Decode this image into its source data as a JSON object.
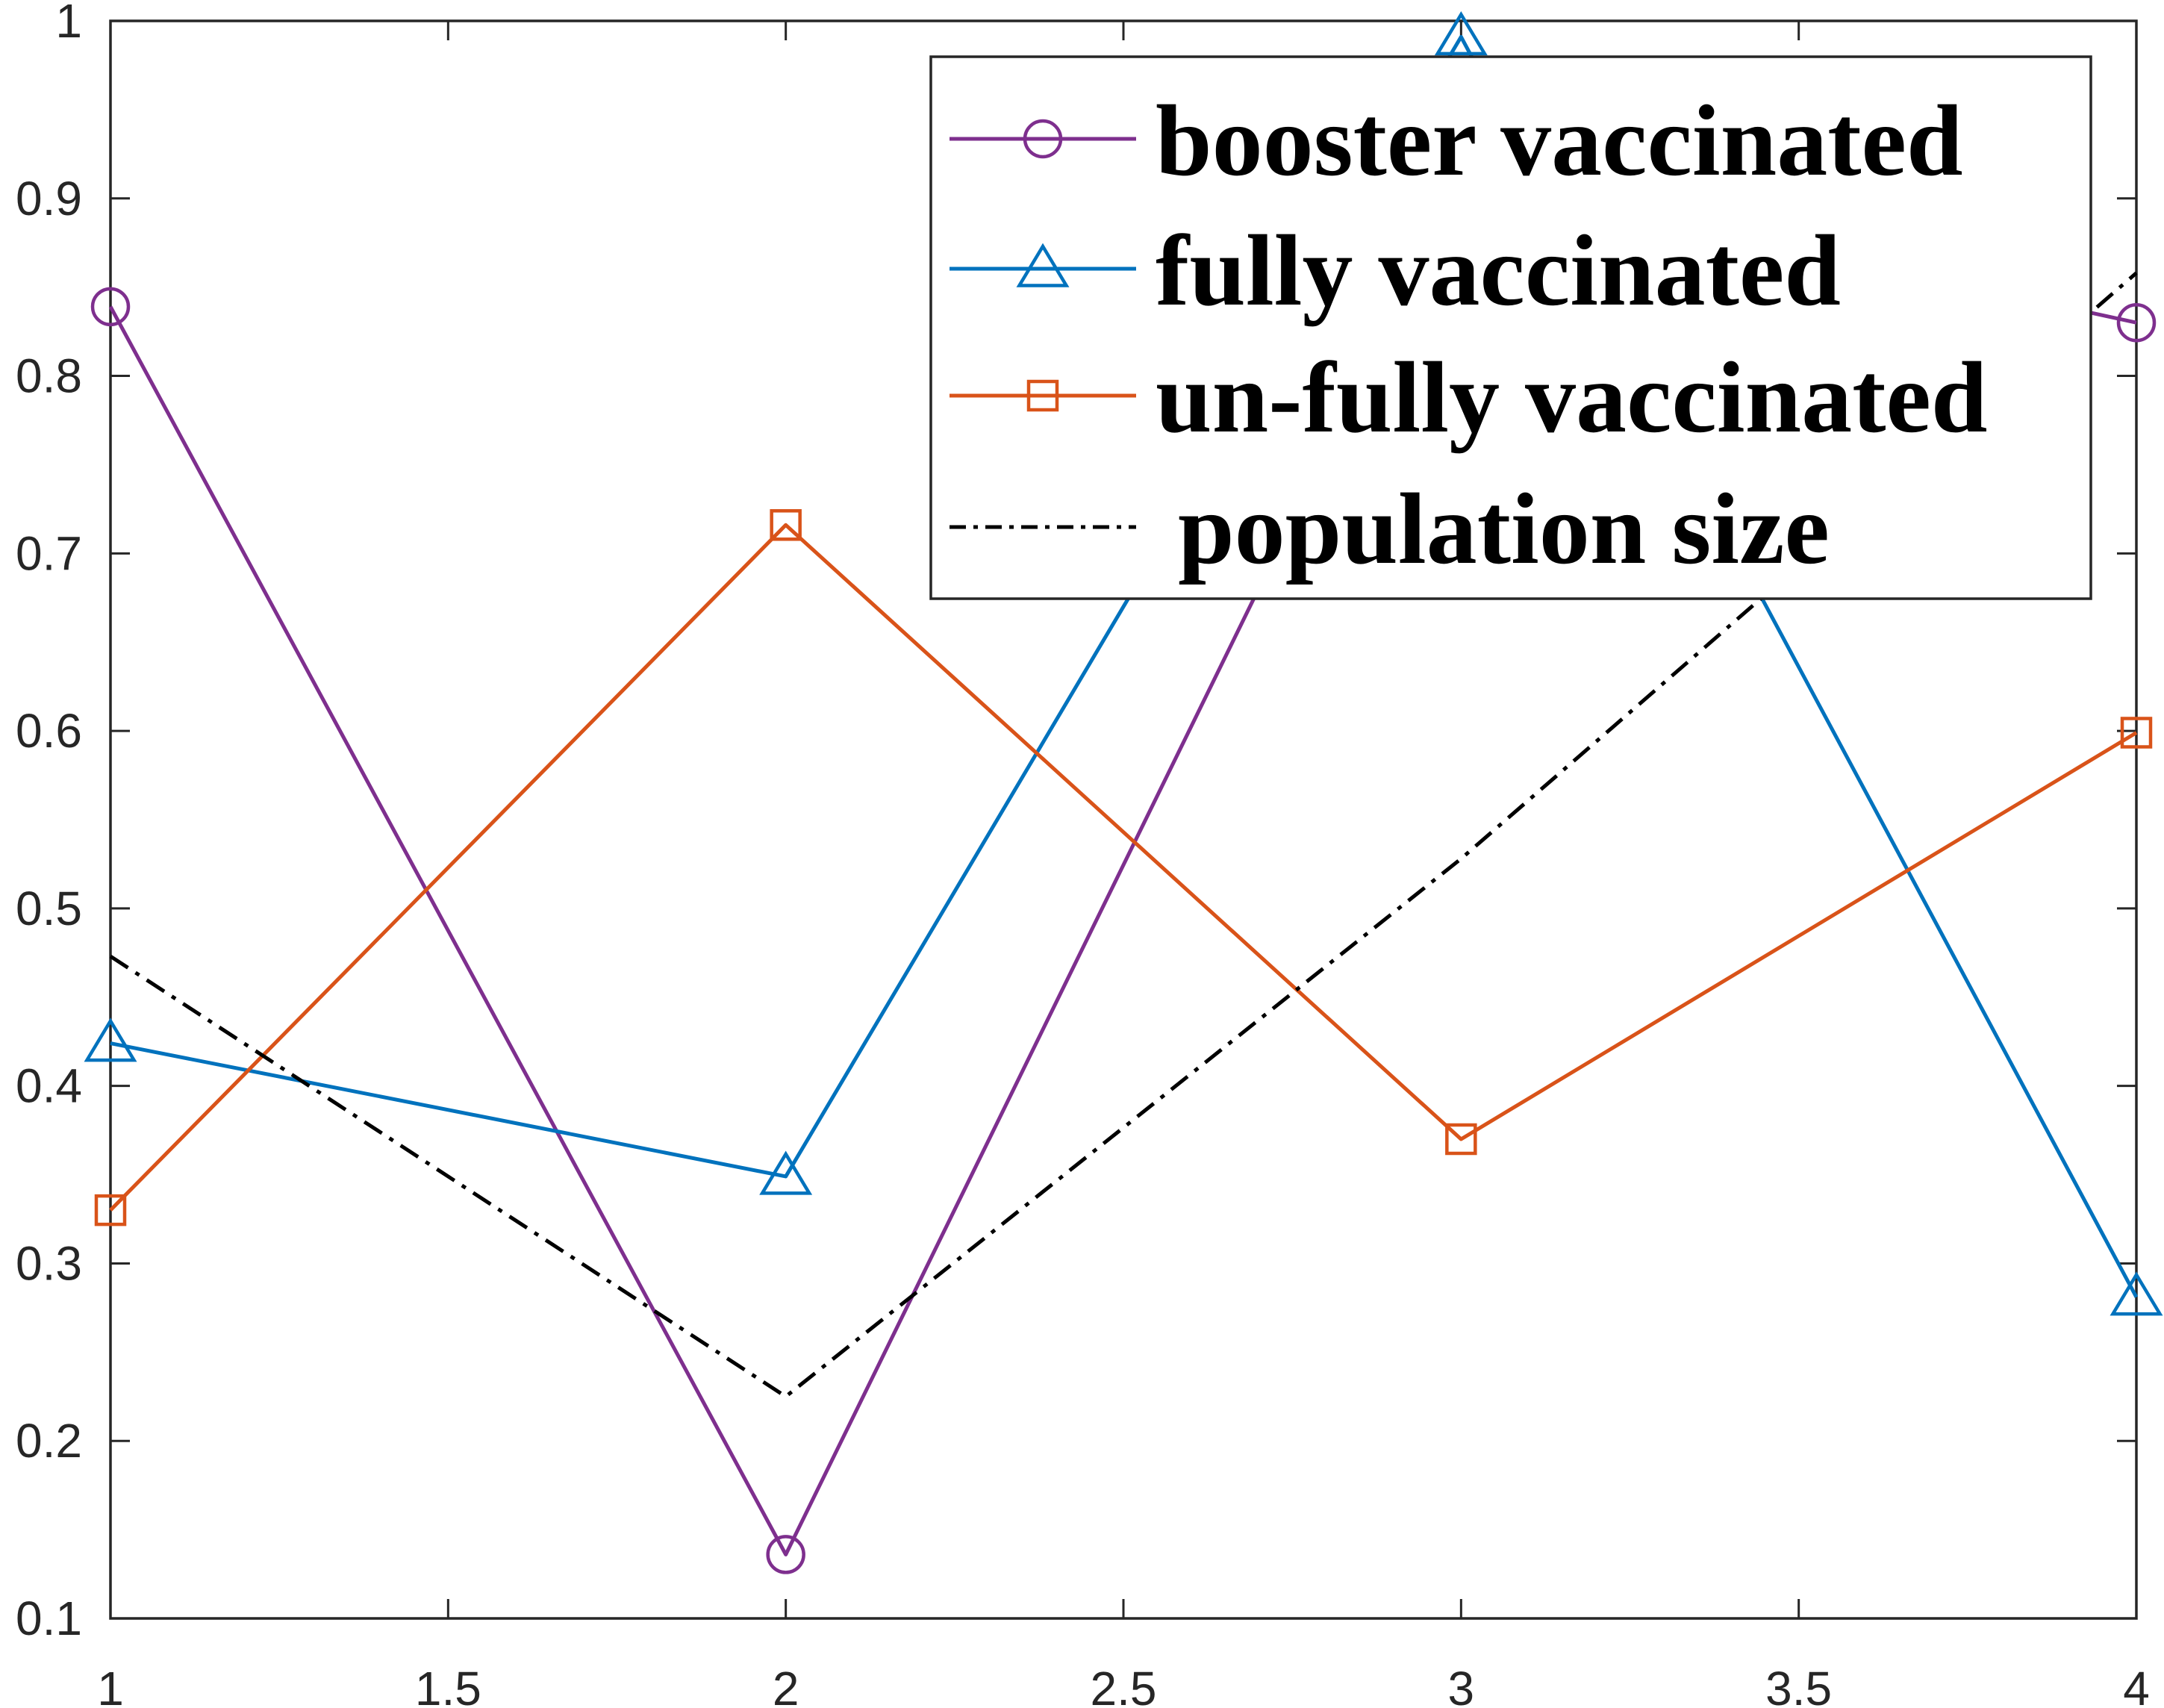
{
  "chart_data": {
    "type": "line",
    "title": "",
    "xlabel": "",
    "ylabel": "",
    "xlim": [
      1,
      4
    ],
    "ylim": [
      0.1,
      1
    ],
    "xticks": [
      1,
      1.5,
      2,
      2.5,
      3,
      3.5,
      4
    ],
    "xtick_labels": [
      "1",
      "1.5",
      "2",
      "2.5",
      "3",
      "3.5",
      "4"
    ],
    "yticks": [
      0.1,
      0.2,
      0.3,
      0.4,
      0.5,
      0.6,
      0.7,
      0.8,
      0.9,
      1
    ],
    "ytick_labels": [
      "0.1",
      "0.2",
      "0.3",
      "0.4",
      "0.5",
      "0.6",
      "0.7",
      "0.8",
      "0.9",
      "1"
    ],
    "grid": false,
    "legend_position": "top-right",
    "x": [
      1,
      2,
      3,
      4
    ],
    "series": [
      {
        "name": "booster vaccinated",
        "values": [
          0.839,
          0.136,
          0.913,
          0.83
        ],
        "color": "#7E2F8E",
        "marker": "circle",
        "line": "solid"
      },
      {
        "name": "fully vaccinated",
        "values": [
          0.424,
          0.349,
          0.991,
          0.281
        ],
        "color": "#0072BD",
        "marker": "triangle",
        "line": "solid"
      },
      {
        "name": "un-fully vaccinated",
        "values": [
          0.33,
          0.716,
          0.37,
          0.599
        ],
        "color": "#D95319",
        "marker": "square",
        "line": "solid"
      },
      {
        "name": "population size",
        "values": [
          0.473,
          0.225,
          0.528,
          0.858
        ],
        "color": "#000000",
        "marker": "none",
        "line": "dashdot"
      }
    ]
  }
}
